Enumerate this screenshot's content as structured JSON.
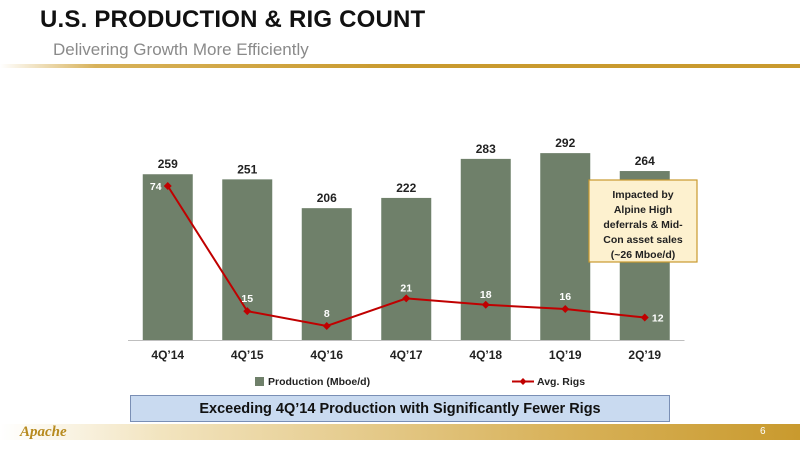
{
  "slide": {
    "title": "U.S. PRODUCTION & RIG COUNT",
    "subtitle": "Delivering Growth More Efficiently",
    "banner": "Exceeding 4Q’14 Production with Significantly Fewer Rigs",
    "logo": "Apache",
    "page_number": "6"
  },
  "colors": {
    "bar": "#6f806a",
    "line": "#c00000",
    "callout_bg": "#fdf1cf",
    "callout_border": "#c99a2e",
    "accent": "#c99a2e"
  },
  "chart_data": {
    "type": "bar",
    "categories": [
      "4Q’14",
      "4Q’15",
      "4Q’16",
      "4Q’17",
      "4Q’18",
      "1Q’19",
      "2Q’19"
    ],
    "series": [
      {
        "name": "Production (Mboe/d)",
        "type": "bar",
        "values": [
          259,
          251,
          206,
          222,
          283,
          292,
          264
        ]
      },
      {
        "name": "Avg. Rigs",
        "type": "line",
        "values": [
          74,
          15,
          8,
          21,
          18,
          16,
          12
        ]
      }
    ],
    "legend_position": "bottom",
    "grid": false,
    "annotation": "Impacted by Alpine High deferrals & Mid-Con asset sales (~26 Mboe/d)"
  }
}
